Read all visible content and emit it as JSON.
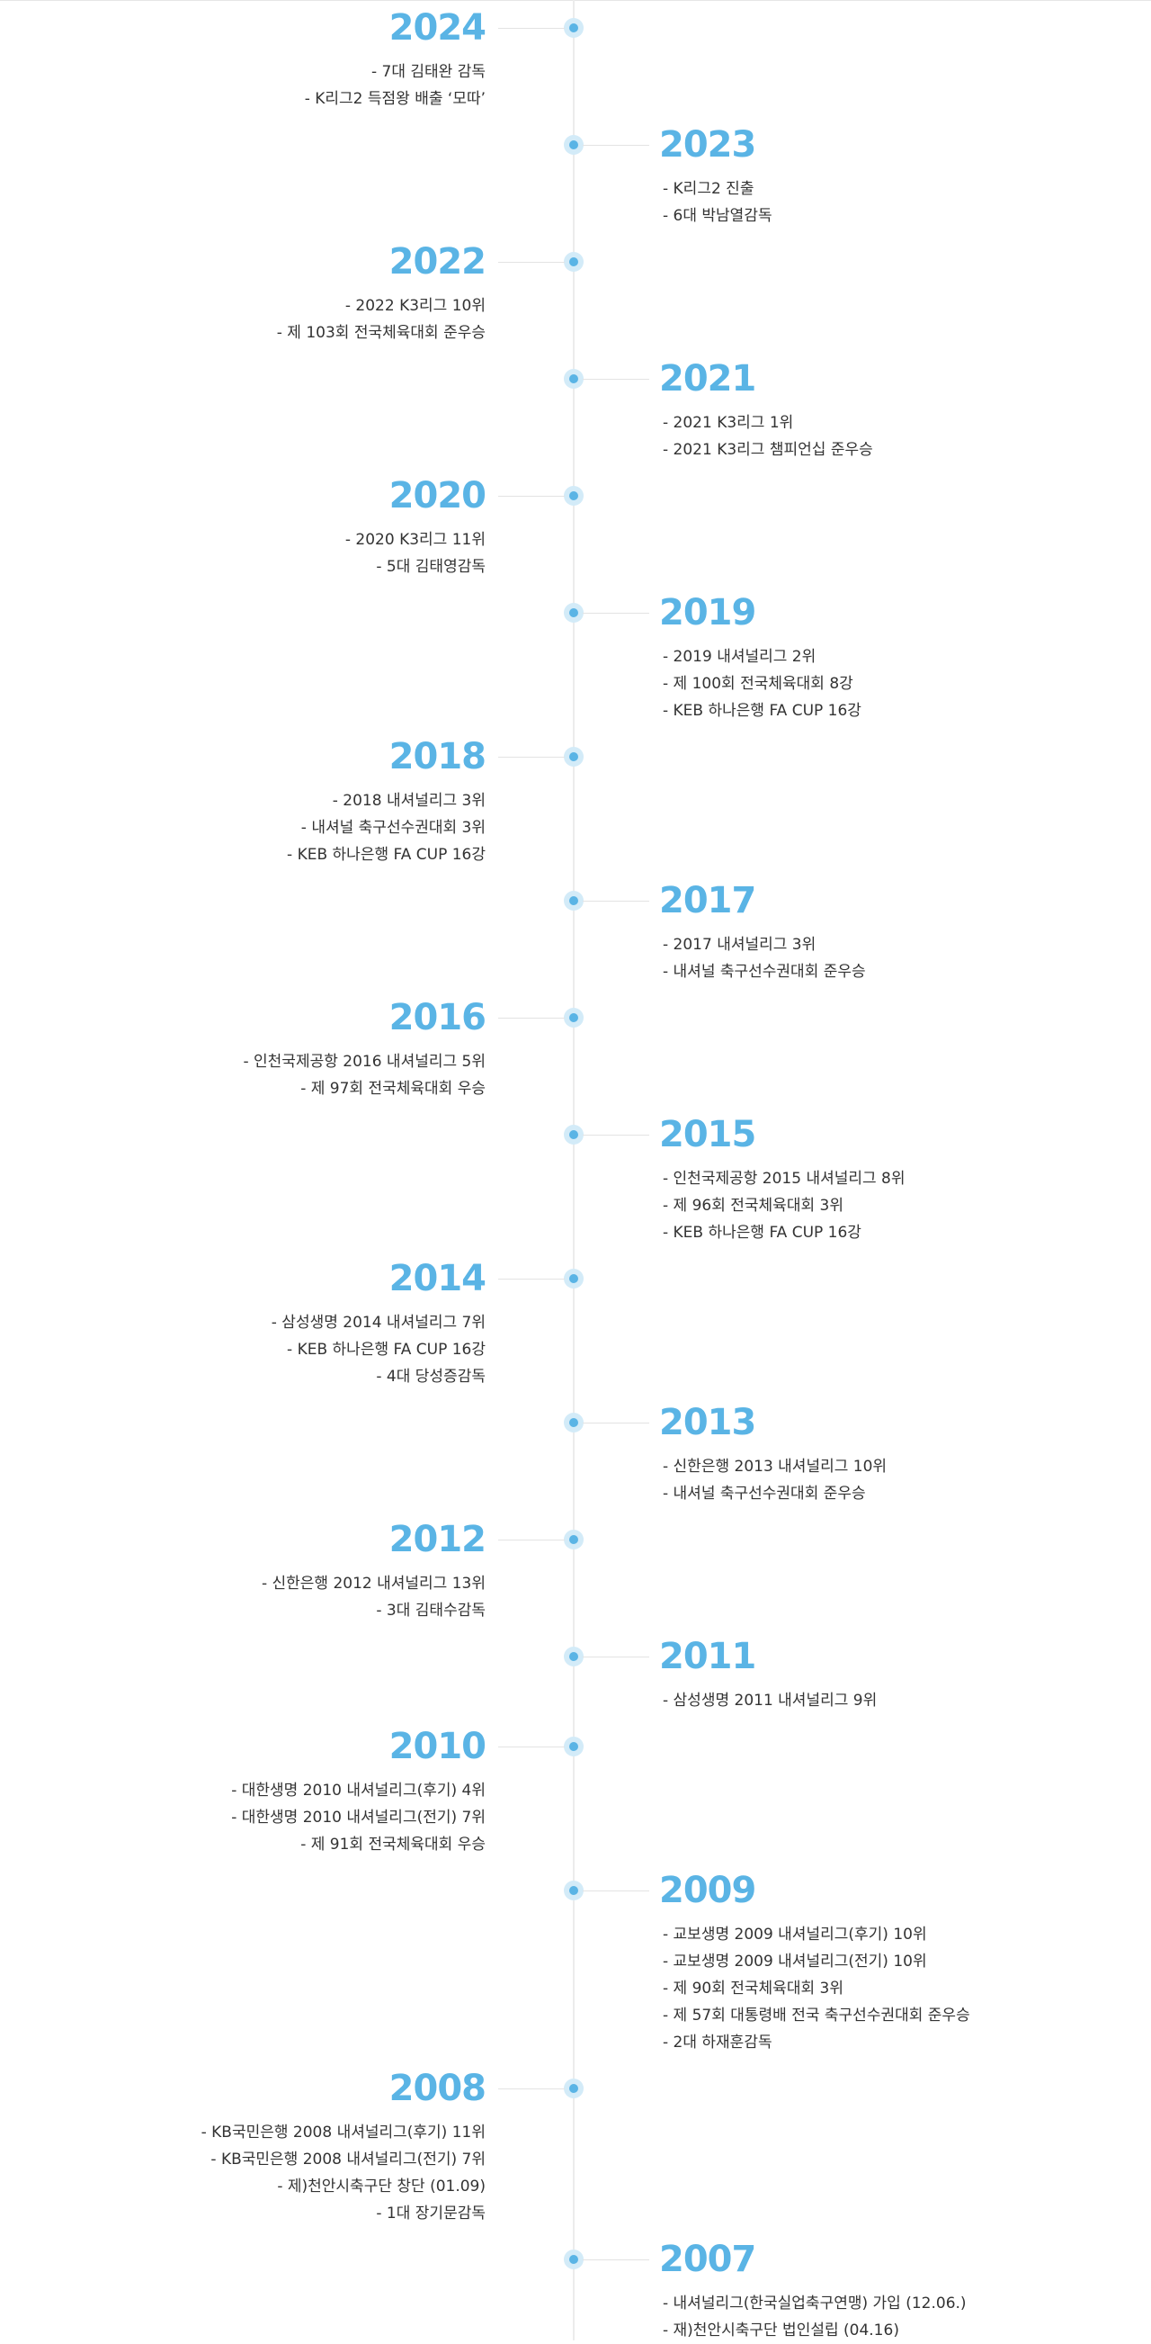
{
  "timeline": [
    {
      "year": "2024",
      "items": [
        "- 7대 김태완 감독",
        "- K리그2 득점왕 배출 ‘모따’"
      ]
    },
    {
      "year": "2023",
      "items": [
        "- K리그2 진출",
        "- 6대 박남열감독"
      ]
    },
    {
      "year": "2022",
      "items": [
        "- 2022 K3리그 10위",
        "- 제 103회 전국체육대회 준우승"
      ]
    },
    {
      "year": "2021",
      "items": [
        "- 2021 K3리그 1위",
        "- 2021 K3리그 챔피언십 준우승"
      ]
    },
    {
      "year": "2020",
      "items": [
        "- 2020 K3리그 11위",
        "- 5대 김태영감독"
      ]
    },
    {
      "year": "2019",
      "items": [
        "- 2019 내셔널리그 2위",
        "- 제 100회 전국체육대회 8강",
        "- KEB 하나은행 FA CUP 16강"
      ]
    },
    {
      "year": "2018",
      "items": [
        "- 2018 내셔널리그 3위",
        "- 내셔널 축구선수권대회 3위",
        "- KEB 하나은행 FA CUP 16강"
      ]
    },
    {
      "year": "2017",
      "items": [
        "- 2017 내셔널리그 3위",
        "- 내셔널 축구선수권대회 준우승"
      ]
    },
    {
      "year": "2016",
      "items": [
        "- 인천국제공항 2016 내셔널리그 5위",
        "- 제 97회 전국체육대회 우승"
      ]
    },
    {
      "year": "2015",
      "items": [
        "- 인천국제공항 2015 내셔널리그 8위",
        "- 제 96회 전국체육대회 3위",
        "- KEB 하나은행 FA CUP 16강"
      ]
    },
    {
      "year": "2014",
      "items": [
        "- 삼성생명 2014 내셔널리그 7위",
        "- KEB 하나은행 FA CUP 16강",
        "- 4대 당성증감독"
      ]
    },
    {
      "year": "2013",
      "items": [
        "- 신한은행 2013 내셔널리그 10위",
        "- 내셔널 축구선수권대회 준우승"
      ]
    },
    {
      "year": "2012",
      "items": [
        "- 신한은행 2012 내셔널리그 13위",
        "- 3대 김태수감독"
      ]
    },
    {
      "year": "2011",
      "items": [
        "- 삼성생명 2011 내셔널리그 9위"
      ]
    },
    {
      "year": "2010",
      "items": [
        "- 대한생명 2010 내셔널리그(후기) 4위",
        "- 대한생명 2010 내셔널리그(전기) 7위",
        "- 제 91회 전국체육대회 우승"
      ]
    },
    {
      "year": "2009",
      "items": [
        "- 교보생명 2009 내셔널리그(후기) 10위",
        "- 교보생명 2009 내셔널리그(전기) 10위",
        "- 제 90회 전국체육대회 3위",
        "- 제 57회 대통령배 전국 축구선수권대회 준우승",
        "- 2대 하재훈감독"
      ]
    },
    {
      "year": "2008",
      "items": [
        "- KB국민은행 2008 내셔널리그(후기) 11위",
        "- KB국민은행 2008 내셔널리그(전기) 7위",
        "- 제)천안시축구단 창단 (01.09)",
        "- 1대 장기문감독"
      ]
    },
    {
      "year": "2007",
      "items": [
        "- 내셔널리그(한국실업축구연맹) 가입 (12.06.)",
        "- 재)천안시축구단 법인설립 (04.16)"
      ]
    }
  ]
}
